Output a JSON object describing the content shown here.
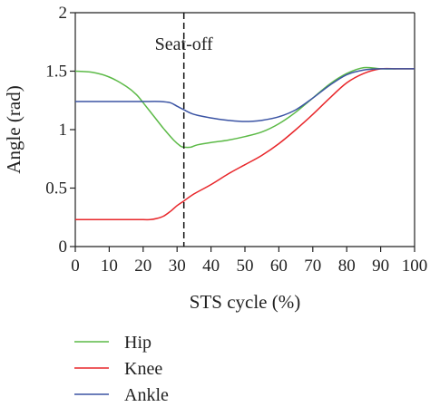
{
  "chart_data": {
    "type": "line",
    "xlabel": "STS cycle (%)",
    "ylabel": "Angle (rad)",
    "xlim": [
      0,
      100
    ],
    "ylim": [
      0,
      2
    ],
    "xticks": [
      "0",
      "10",
      "20",
      "30",
      "40",
      "50",
      "60",
      "70",
      "80",
      "90",
      "100"
    ],
    "yticks": [
      "0",
      "0.5",
      "1",
      "1.5",
      "2"
    ],
    "grid": false,
    "legend": "bottom-left",
    "annotation": {
      "label": "Seat-off",
      "x": 32
    },
    "series": [
      {
        "name": "Hip",
        "color": "#5cba47",
        "x": [
          0,
          5,
          10,
          15,
          18,
          20,
          23,
          26,
          29,
          31,
          32,
          34,
          36,
          40,
          45,
          50,
          55,
          60,
          65,
          70,
          75,
          80,
          85,
          90,
          95,
          100
        ],
        "y": [
          1.5,
          1.49,
          1.45,
          1.37,
          1.3,
          1.23,
          1.12,
          1.01,
          0.91,
          0.86,
          0.85,
          0.85,
          0.87,
          0.89,
          0.91,
          0.94,
          0.98,
          1.05,
          1.15,
          1.27,
          1.39,
          1.48,
          1.53,
          1.52,
          1.52,
          1.52
        ]
      },
      {
        "name": "Knee",
        "color": "#e8262a",
        "x": [
          0,
          5,
          10,
          15,
          20,
          22,
          24,
          26,
          28,
          30,
          32,
          35,
          40,
          45,
          50,
          55,
          60,
          65,
          70,
          75,
          80,
          85,
          90,
          95,
          100
        ],
        "y": [
          0.23,
          0.23,
          0.23,
          0.23,
          0.23,
          0.23,
          0.24,
          0.26,
          0.3,
          0.35,
          0.39,
          0.45,
          0.53,
          0.62,
          0.7,
          0.78,
          0.88,
          1.0,
          1.13,
          1.27,
          1.4,
          1.48,
          1.52,
          1.52,
          1.52
        ]
      },
      {
        "name": "Ankle",
        "color": "#3b54a4",
        "x": [
          0,
          5,
          10,
          15,
          20,
          25,
          28,
          30,
          32,
          35,
          40,
          45,
          50,
          55,
          60,
          65,
          70,
          75,
          80,
          85,
          90,
          95,
          100
        ],
        "y": [
          1.24,
          1.24,
          1.24,
          1.24,
          1.24,
          1.24,
          1.23,
          1.2,
          1.17,
          1.13,
          1.1,
          1.08,
          1.07,
          1.08,
          1.11,
          1.17,
          1.27,
          1.38,
          1.47,
          1.51,
          1.52,
          1.52,
          1.52
        ]
      }
    ]
  }
}
